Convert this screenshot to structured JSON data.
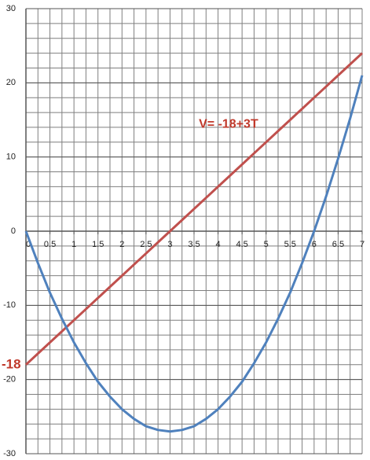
{
  "chart_data": {
    "type": "line",
    "x": [
      0,
      0.25,
      0.5,
      0.75,
      1,
      1.25,
      1.5,
      1.75,
      2,
      2.25,
      2.5,
      2.75,
      3,
      3.25,
      3.5,
      3.75,
      4,
      4.25,
      4.5,
      4.75,
      5,
      5.25,
      5.5,
      5.75,
      6,
      6.25,
      6.5,
      6.75,
      7
    ],
    "series": [
      {
        "color": "#c0504d",
        "values": [
          -18,
          -16.5,
          -15,
          -13.5,
          -12,
          -10.5,
          -9,
          -7.5,
          -6,
          -4.5,
          -3,
          -1.5,
          0,
          1.5,
          3,
          4.5,
          6,
          7.5,
          9,
          10.5,
          12,
          13.5,
          15,
          16.5,
          18,
          19.5,
          21,
          22.5,
          24
        ]
      },
      {
        "color": "#4f81bd",
        "values": [
          0,
          -4.3,
          -8.3,
          -11.8,
          -15,
          -17.8,
          -20.3,
          -22.3,
          -24,
          -25.3,
          -26.3,
          -26.8,
          -27,
          -26.8,
          -26.3,
          -25.3,
          -24,
          -22.3,
          -20.3,
          -17.8,
          -15,
          -11.8,
          -8.3,
          -4.3,
          0,
          4.7,
          9.8,
          15.2,
          21
        ]
      }
    ],
    "xlim": [
      0,
      7
    ],
    "ylim": [
      -30,
      30
    ],
    "xticks": [
      0,
      0.5,
      1,
      1.5,
      2,
      2.5,
      3,
      3.5,
      4,
      4.5,
      5,
      5.5,
      6,
      6.5,
      7
    ],
    "yticks": [
      -30,
      -20,
      -10,
      0,
      10,
      20,
      30
    ],
    "x_grid_step": 0.25,
    "y_grid_step": 2,
    "grid": true,
    "annotations": [
      {
        "text": "V= -18+3T",
        "x": 3.6,
        "y": 14.4
      },
      {
        "text": "-18",
        "x": 0,
        "y": -18
      }
    ]
  }
}
